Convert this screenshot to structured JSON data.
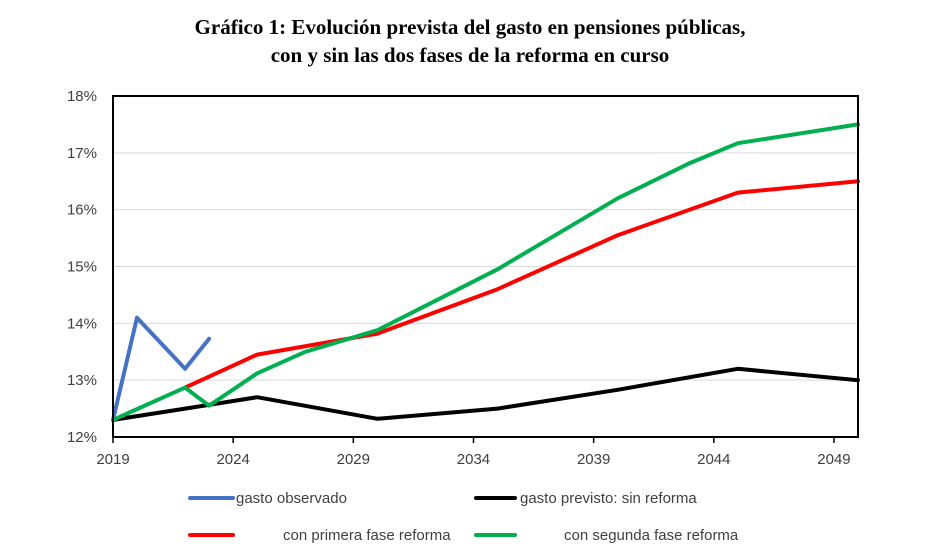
{
  "chart_data": {
    "type": "line",
    "title": "Gráfico 1: Evolución prevista del gasto en pensiones públicas,",
    "subtitle": "con y sin las dos fases de la reforma en curso",
    "xlabel": "",
    "ylabel": "",
    "xlim": [
      2019,
      2050
    ],
    "ylim": [
      12,
      18
    ],
    "x_ticks": [
      "2019",
      "2024",
      "2029",
      "2034",
      "2039",
      "2044",
      "2049"
    ],
    "y_ticks": [
      "12%",
      "13%",
      "14%",
      "15%",
      "16%",
      "17%",
      "18%"
    ],
    "grid": true,
    "legend_position": "bottom",
    "series": [
      {
        "name": "gasto observado",
        "color": "#4472C4",
        "x": [
          2019,
          2020,
          2022,
          2023
        ],
        "y": [
          12.3,
          14.1,
          13.2,
          13.73
        ]
      },
      {
        "name": "gasto previsto: sin reforma",
        "color": "#000000",
        "x": [
          2019,
          2022,
          2025,
          2030,
          2035,
          2040,
          2045,
          2050
        ],
        "y": [
          12.3,
          12.5,
          12.7,
          12.32,
          12.5,
          12.83,
          13.2,
          13.0
        ]
      },
      {
        "name": "con primera fase reforma",
        "color": "#FF0000",
        "x": [
          2022,
          2025,
          2030,
          2035,
          2040,
          2045,
          2050
        ],
        "y": [
          12.87,
          13.45,
          13.82,
          14.6,
          15.55,
          16.3,
          16.5
        ]
      },
      {
        "name": "con segunda fase reforma",
        "color": "#00B050",
        "x": [
          2019,
          2022,
          2023,
          2025,
          2027,
          2030,
          2035,
          2040,
          2043,
          2045,
          2050
        ],
        "y": [
          12.3,
          12.87,
          12.55,
          13.12,
          13.5,
          13.88,
          14.95,
          16.2,
          16.82,
          17.17,
          17.5
        ]
      }
    ]
  }
}
